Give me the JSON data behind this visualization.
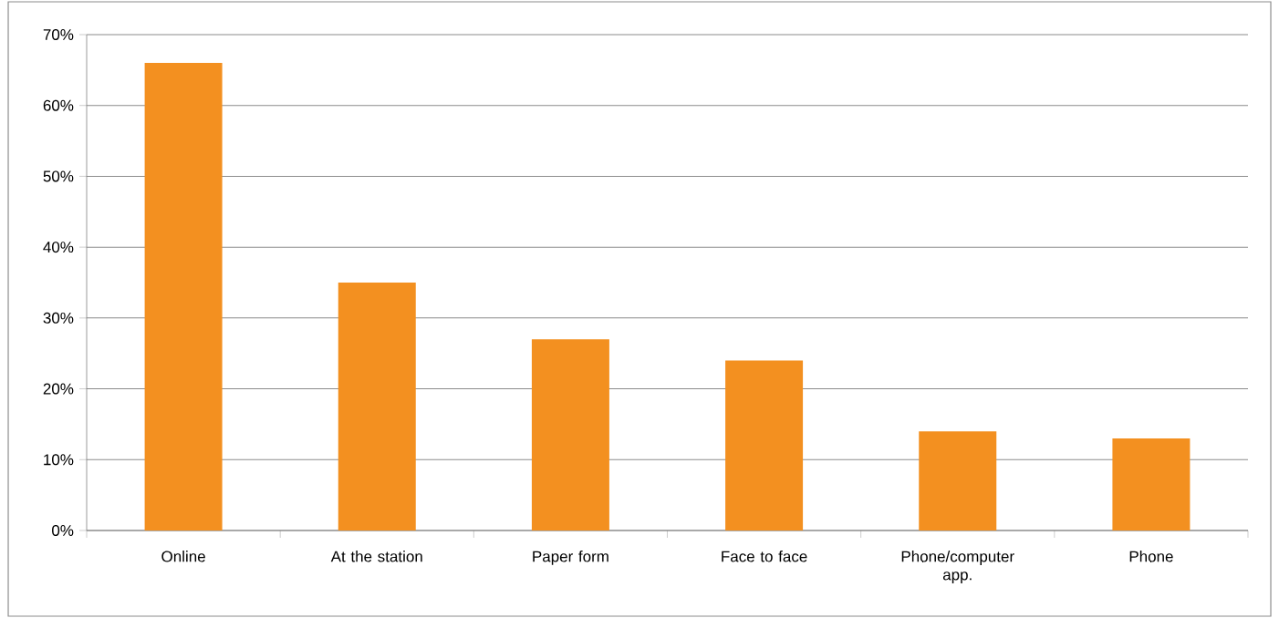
{
  "chart_data": {
    "type": "bar",
    "categories": [
      "Online",
      "At the station",
      "Paper form",
      "Face to face",
      "Phone/computer app.",
      "Phone"
    ],
    "values": [
      66,
      35,
      27,
      24,
      14,
      13
    ],
    "color": "#f39020",
    "ylim": [
      0,
      70
    ],
    "yticks": [
      {
        "value": 0,
        "label": "0%"
      },
      {
        "value": 10,
        "label": "10%"
      },
      {
        "value": 20,
        "label": "20%"
      },
      {
        "value": 30,
        "label": "30%"
      },
      {
        "value": 40,
        "label": "40%"
      },
      {
        "value": 50,
        "label": "50%"
      },
      {
        "value": 60,
        "label": "60%"
      },
      {
        "value": 70,
        "label": "70%"
      }
    ],
    "grid": "y"
  }
}
